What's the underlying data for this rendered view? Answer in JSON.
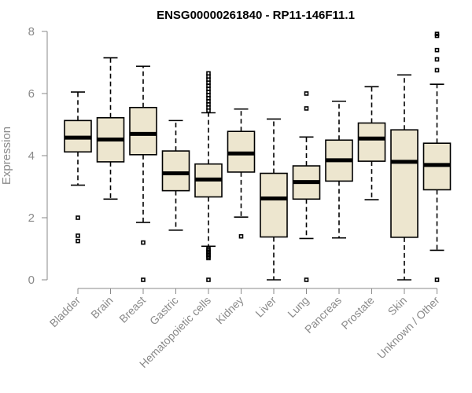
{
  "chart_data": {
    "type": "boxplot",
    "title": "ENSG00000261840 - RP11-146F11.1",
    "xlabel": "",
    "ylabel": "Expression",
    "ylim": [
      0,
      8
    ],
    "yticks": [
      0,
      2,
      4,
      6,
      8
    ],
    "categories": [
      "Bladder",
      "Brain",
      "Breast",
      "Gastric",
      "Hematopoietic cells",
      "Kidney",
      "Liver",
      "Lung",
      "Pancreas",
      "Prostate",
      "Skin",
      "Unknown / Other"
    ],
    "boxes": [
      {
        "category": "Bladder",
        "whisker_low": 3.05,
        "q1": 4.12,
        "median": 4.58,
        "q3": 5.13,
        "whisker_high": 6.05,
        "outliers": [
          2.0,
          1.42,
          1.25
        ]
      },
      {
        "category": "Brain",
        "whisker_low": 2.6,
        "q1": 3.8,
        "median": 4.52,
        "q3": 5.22,
        "whisker_high": 7.15,
        "outliers": []
      },
      {
        "category": "Breast",
        "whisker_low": 1.85,
        "q1": 4.03,
        "median": 4.7,
        "q3": 5.55,
        "whisker_high": 6.88,
        "outliers": [
          1.2,
          0.0
        ]
      },
      {
        "category": "Gastric",
        "whisker_low": 1.6,
        "q1": 2.87,
        "median": 3.43,
        "q3": 4.15,
        "whisker_high": 5.13,
        "outliers": []
      },
      {
        "category": "Hematopoietic cells",
        "whisker_low": 1.08,
        "q1": 2.67,
        "median": 3.23,
        "q3": 3.73,
        "whisker_high": 5.38,
        "outliers": [
          6.65,
          6.55,
          6.45,
          6.35,
          6.25,
          6.15,
          6.05,
          5.95,
          5.85,
          5.75,
          5.65,
          5.55,
          5.45,
          1.0,
          0.95,
          0.9,
          0.85,
          0.8,
          0.75,
          0.7,
          0.0
        ]
      },
      {
        "category": "Kidney",
        "whisker_low": 2.02,
        "q1": 3.47,
        "median": 4.07,
        "q3": 4.78,
        "whisker_high": 5.5,
        "outliers": [
          1.4
        ]
      },
      {
        "category": "Liver",
        "whisker_low": 0.0,
        "q1": 1.38,
        "median": 2.62,
        "q3": 3.43,
        "whisker_high": 5.18,
        "outliers": []
      },
      {
        "category": "Lung",
        "whisker_low": 1.33,
        "q1": 2.6,
        "median": 3.15,
        "q3": 3.67,
        "whisker_high": 4.6,
        "outliers": [
          6.0,
          5.52,
          0.0
        ]
      },
      {
        "category": "Pancreas",
        "whisker_low": 1.35,
        "q1": 3.18,
        "median": 3.85,
        "q3": 4.5,
        "whisker_high": 5.75,
        "outliers": []
      },
      {
        "category": "Prostate",
        "whisker_low": 2.58,
        "q1": 3.82,
        "median": 4.55,
        "q3": 5.05,
        "whisker_high": 6.22,
        "outliers": []
      },
      {
        "category": "Skin",
        "whisker_low": 0.0,
        "q1": 1.37,
        "median": 3.8,
        "q3": 4.83,
        "whisker_high": 6.6,
        "outliers": []
      },
      {
        "category": "Unknown / Other",
        "whisker_low": 0.95,
        "q1": 2.9,
        "median": 3.7,
        "q3": 4.4,
        "whisker_high": 6.3,
        "outliers": [
          7.92,
          7.86,
          7.4,
          7.1,
          6.75,
          0.0
        ]
      }
    ]
  }
}
